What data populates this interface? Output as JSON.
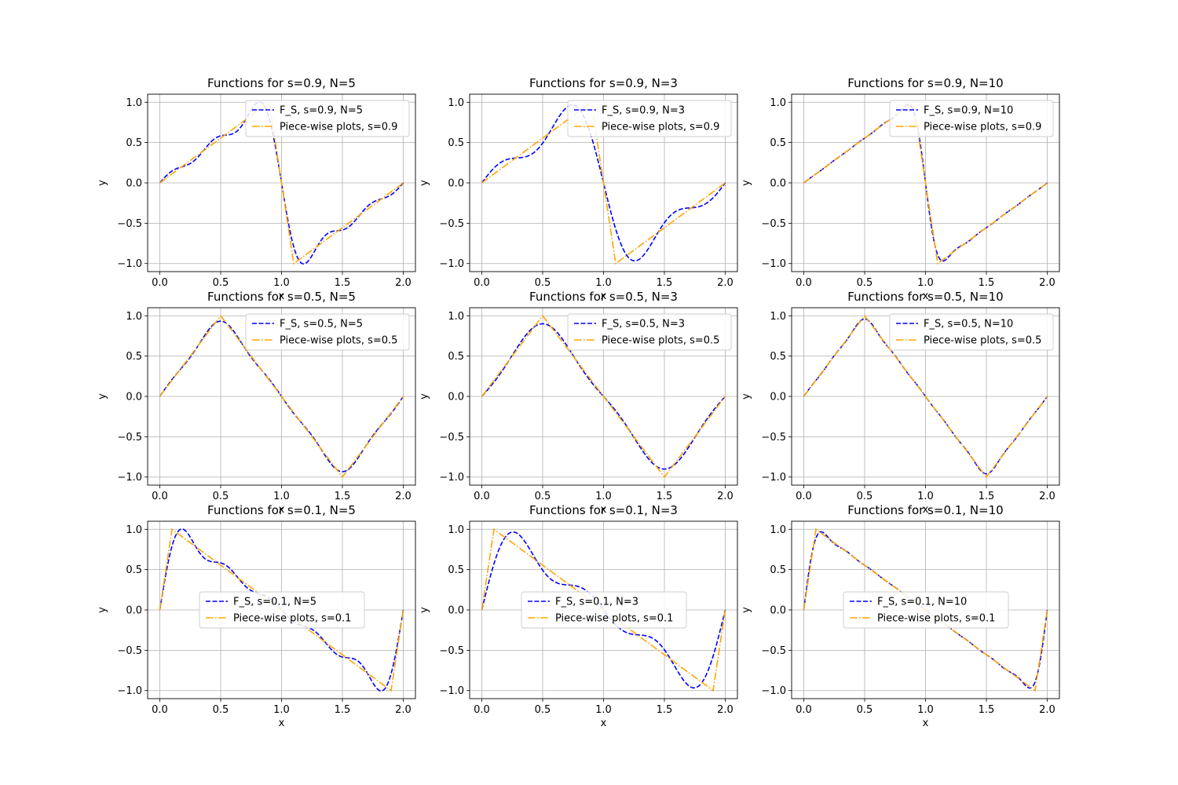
{
  "chart_data": [
    {
      "type": "line",
      "title": "Functions for s=0.9, N=5",
      "xlabel": "x",
      "ylabel": "y",
      "xlim": [
        -0.1,
        2.1
      ],
      "ylim": [
        -1.1,
        1.1
      ],
      "xticks": [
        "0.0",
        "0.5",
        "1.0",
        "1.5",
        "2.0"
      ],
      "yticks": [
        "1.0",
        "0.5",
        "0.0",
        "−0.5",
        "−1.0"
      ],
      "grid": true,
      "legend_position": "upper-right",
      "s": 0.9,
      "N": 5,
      "series": [
        {
          "name": "F_S, s=0.9, N=5",
          "style": "dashed",
          "color": "#0000ff"
        },
        {
          "name": "Piece-wise plots, s=0.9",
          "style": "dashdot",
          "color": "#ffa500"
        }
      ]
    },
    {
      "type": "line",
      "title": "Functions for s=0.9, N=3",
      "xlabel": "x",
      "ylabel": "y",
      "xlim": [
        -0.1,
        2.1
      ],
      "ylim": [
        -1.1,
        1.1
      ],
      "xticks": [
        "0.0",
        "0.5",
        "1.0",
        "1.5",
        "2.0"
      ],
      "yticks": [
        "1.0",
        "0.5",
        "0.0",
        "−0.5",
        "−1.0"
      ],
      "grid": true,
      "legend_position": "upper-right",
      "s": 0.9,
      "N": 3,
      "series": [
        {
          "name": "F_S, s=0.9, N=3",
          "style": "dashed",
          "color": "#0000ff"
        },
        {
          "name": "Piece-wise plots, s=0.9",
          "style": "dashdot",
          "color": "#ffa500"
        }
      ]
    },
    {
      "type": "line",
      "title": "Functions for s=0.9, N=10",
      "xlabel": "x",
      "ylabel": "y",
      "xlim": [
        -0.1,
        2.1
      ],
      "ylim": [
        -1.1,
        1.1
      ],
      "xticks": [
        "0.0",
        "0.5",
        "1.0",
        "1.5",
        "2.0"
      ],
      "yticks": [
        "1.0",
        "0.5",
        "0.0",
        "−0.5",
        "−1.0"
      ],
      "grid": true,
      "legend_position": "upper-right",
      "s": 0.9,
      "N": 10,
      "series": [
        {
          "name": "F_S, s=0.9, N=10",
          "style": "dashed",
          "color": "#0000ff"
        },
        {
          "name": "Piece-wise plots, s=0.9",
          "style": "dashdot",
          "color": "#ffa500"
        }
      ]
    },
    {
      "type": "line",
      "title": "Functions for s=0.5, N=5",
      "xlabel": "x",
      "ylabel": "y",
      "xlim": [
        -0.1,
        2.1
      ],
      "ylim": [
        -1.1,
        1.1
      ],
      "xticks": [
        "0.0",
        "0.5",
        "1.0",
        "1.5",
        "2.0"
      ],
      "yticks": [
        "1.0",
        "0.5",
        "0.0",
        "−0.5",
        "−1.0"
      ],
      "grid": true,
      "legend_position": "upper-right",
      "s": 0.5,
      "N": 5,
      "series": [
        {
          "name": "F_S, s=0.5, N=5",
          "style": "dashed",
          "color": "#0000ff"
        },
        {
          "name": "Piece-wise plots, s=0.5",
          "style": "dashdot",
          "color": "#ffa500"
        }
      ]
    },
    {
      "type": "line",
      "title": "Functions for s=0.5, N=3",
      "xlabel": "x",
      "ylabel": "y",
      "xlim": [
        -0.1,
        2.1
      ],
      "ylim": [
        -1.1,
        1.1
      ],
      "xticks": [
        "0.0",
        "0.5",
        "1.0",
        "1.5",
        "2.0"
      ],
      "yticks": [
        "1.0",
        "0.5",
        "0.0",
        "−0.5",
        "−1.0"
      ],
      "grid": true,
      "legend_position": "upper-right",
      "s": 0.5,
      "N": 3,
      "series": [
        {
          "name": "F_S, s=0.5, N=3",
          "style": "dashed",
          "color": "#0000ff"
        },
        {
          "name": "Piece-wise plots, s=0.5",
          "style": "dashdot",
          "color": "#ffa500"
        }
      ]
    },
    {
      "type": "line",
      "title": "Functions for s=0.5, N=10",
      "xlabel": "x",
      "ylabel": "y",
      "xlim": [
        -0.1,
        2.1
      ],
      "ylim": [
        -1.1,
        1.1
      ],
      "xticks": [
        "0.0",
        "0.5",
        "1.0",
        "1.5",
        "2.0"
      ],
      "yticks": [
        "1.0",
        "0.5",
        "0.0",
        "−0.5",
        "−1.0"
      ],
      "grid": true,
      "legend_position": "upper-right",
      "s": 0.5,
      "N": 10,
      "series": [
        {
          "name": "F_S, s=0.5, N=10",
          "style": "dashed",
          "color": "#0000ff"
        },
        {
          "name": "Piece-wise plots, s=0.5",
          "style": "dashdot",
          "color": "#ffa500"
        }
      ]
    },
    {
      "type": "line",
      "title": "Functions for s=0.1, N=5",
      "xlabel": "x",
      "ylabel": "y",
      "xlim": [
        -0.1,
        2.1
      ],
      "ylim": [
        -1.1,
        1.1
      ],
      "xticks": [
        "0.0",
        "0.5",
        "1.0",
        "1.5",
        "2.0"
      ],
      "yticks": [
        "1.0",
        "0.5",
        "0.0",
        "−0.5",
        "−1.0"
      ],
      "grid": true,
      "legend_position": "center",
      "s": 0.1,
      "N": 5,
      "series": [
        {
          "name": "F_S, s=0.1, N=5",
          "style": "dashed",
          "color": "#0000ff"
        },
        {
          "name": "Piece-wise plots, s=0.1",
          "style": "dashdot",
          "color": "#ffa500"
        }
      ]
    },
    {
      "type": "line",
      "title": "Functions for s=0.1, N=3",
      "xlabel": "x",
      "ylabel": "y",
      "xlim": [
        -0.1,
        2.1
      ],
      "ylim": [
        -1.1,
        1.1
      ],
      "xticks": [
        "0.0",
        "0.5",
        "1.0",
        "1.5",
        "2.0"
      ],
      "yticks": [
        "1.0",
        "0.5",
        "0.0",
        "−0.5",
        "−1.0"
      ],
      "grid": true,
      "legend_position": "center",
      "s": 0.1,
      "N": 3,
      "series": [
        {
          "name": "F_S, s=0.1, N=3",
          "style": "dashed",
          "color": "#0000ff"
        },
        {
          "name": "Piece-wise plots, s=0.1",
          "style": "dashdot",
          "color": "#ffa500"
        }
      ]
    },
    {
      "type": "line",
      "title": "Functions for s=0.1, N=10",
      "xlabel": "x",
      "ylabel": "y",
      "xlim": [
        -0.1,
        2.1
      ],
      "ylim": [
        -1.1,
        1.1
      ],
      "xticks": [
        "0.0",
        "0.5",
        "1.0",
        "1.5",
        "2.0"
      ],
      "yticks": [
        "1.0",
        "0.5",
        "0.0",
        "−0.5",
        "−1.0"
      ],
      "grid": true,
      "legend_position": "center",
      "s": 0.1,
      "N": 10,
      "series": [
        {
          "name": "F_S, s=0.1, N=10",
          "style": "dashed",
          "color": "#0000ff"
        },
        {
          "name": "Piece-wise plots, s=0.1",
          "style": "dashdot",
          "color": "#ffa500"
        }
      ]
    }
  ]
}
